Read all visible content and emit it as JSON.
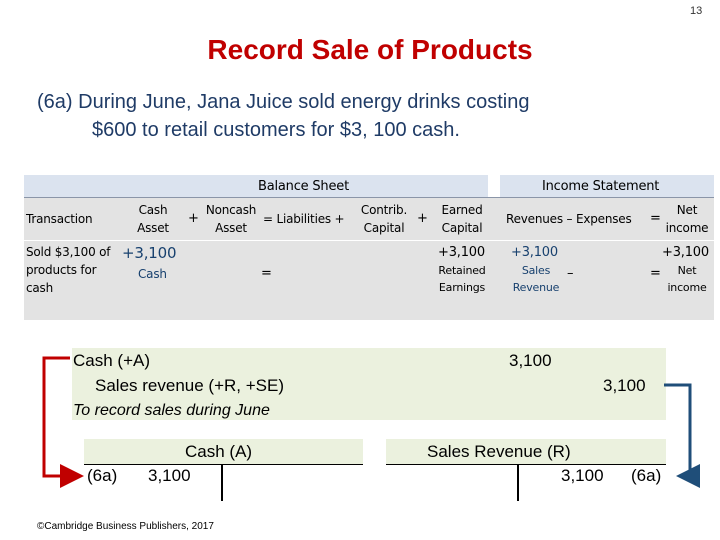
{
  "slide": {
    "number": "13",
    "title": "Record Sale of Products"
  },
  "intro": {
    "line1": "(6a)  During June, Jana Juice sold energy drinks costing",
    "line2": "$600 to retail customers for $3, 100 cash."
  },
  "equation": {
    "balance_sheet_label": "Balance Sheet",
    "income_statement_label": "Income Statement",
    "transaction_label": "Transaction",
    "cash_asset": [
      "Cash",
      "Asset"
    ],
    "plus": "+",
    "noncash_asset": [
      "Noncash",
      "Asset"
    ],
    "equals_liabilities_plus": "= Liabilities +",
    "contrib_capital": [
      "Contrib.",
      "Capital"
    ],
    "earned_capital": [
      "Earned",
      "Capital"
    ],
    "revenues_minus_expenses": "Revenues – Expenses",
    "equals": "=",
    "net_income": [
      "Net",
      "income"
    ],
    "row": {
      "transaction": [
        "Sold $3,100 of",
        "products for",
        "cash"
      ],
      "cash_value": "+3,100",
      "cash_account": "Cash",
      "equals": "=",
      "earned_value": "+3,100",
      "earned_account": [
        "Retained",
        "Earnings"
      ],
      "revenue_value": "+3,100",
      "revenue_account": [
        "Sales",
        "Revenue"
      ],
      "minus": "–",
      "equals2": "=",
      "net_value": "+3,100",
      "net_account": [
        "Net",
        "income"
      ]
    }
  },
  "journal_entry": {
    "debit_account": "Cash (+A)",
    "debit_amount": "3,100",
    "credit_account": "Sales revenue (+R, +SE)",
    "credit_amount": "3,100",
    "memo": "To record sales during June"
  },
  "t_accounts": {
    "cash": {
      "title": "Cash  (A)",
      "ref": "(6a)",
      "amount": "3,100"
    },
    "sales_revenue": {
      "title": "Sales Revenue (R)",
      "amount": "3,100",
      "ref": "(6a)"
    }
  },
  "arrow_colors": {
    "debit": "#c00000",
    "credit": "#1f4e79"
  },
  "footer": "©Cambridge Business Publishers, 2017"
}
